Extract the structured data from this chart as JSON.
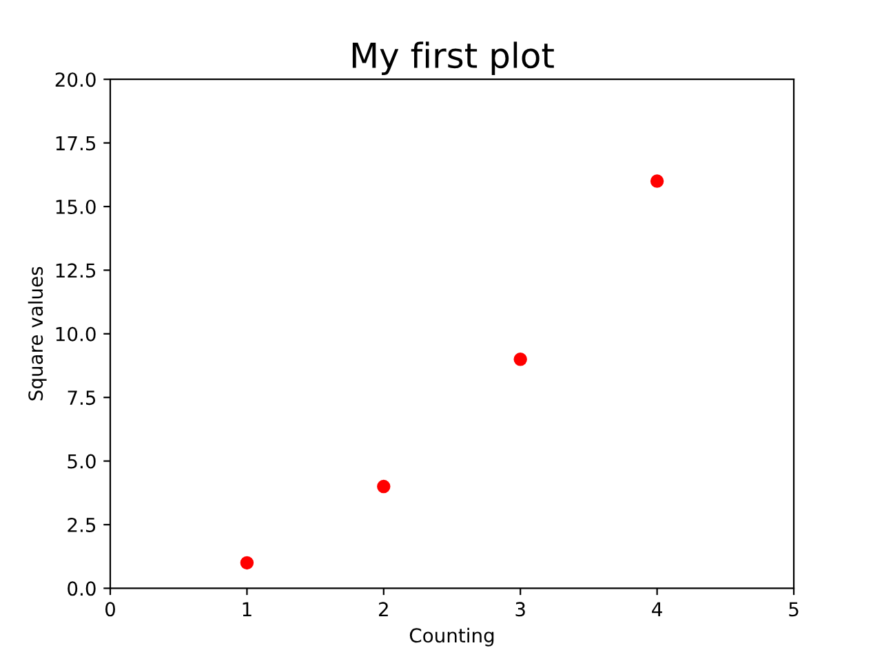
{
  "chart_data": {
    "type": "scatter",
    "title": "My first plot",
    "xlabel": "Counting",
    "ylabel": "Square values",
    "x": [
      1,
      2,
      3,
      4
    ],
    "values": [
      1,
      4,
      9,
      16
    ],
    "color": "#ff0000",
    "marker": "circle",
    "xlim": [
      0,
      5
    ],
    "ylim": [
      0,
      20
    ],
    "xticks": [
      0,
      1,
      2,
      3,
      4,
      5
    ],
    "yticks": [
      {
        "value": 0,
        "label": "0.0"
      },
      2.5,
      {
        "value": 5,
        "label": "5.0"
      },
      7.5,
      {
        "value": 10,
        "label": "10.0"
      },
      12.5,
      {
        "value": 15,
        "label": "15.0"
      },
      17.5,
      {
        "value": 20,
        "label": "20.0"
      }
    ],
    "grid": false
  }
}
